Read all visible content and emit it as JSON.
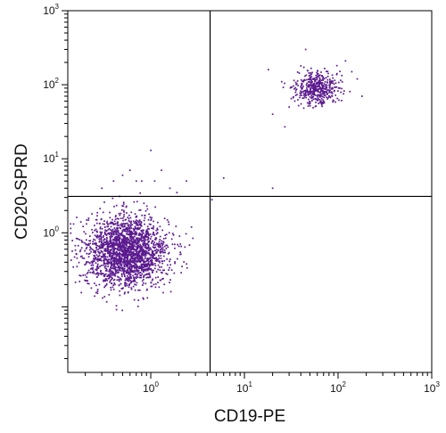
{
  "chart_data": {
    "type": "scatter",
    "title": "",
    "xlabel": "CD19-PE",
    "ylabel": "CD20-SPRD",
    "x_scale": "log",
    "y_scale": "log",
    "xlim": [
      0.13,
      1000
    ],
    "ylim": [
      0.013,
      1000
    ],
    "x_ticks": [
      {
        "value": 1,
        "base": "10",
        "exp": "0"
      },
      {
        "value": 10,
        "base": "10",
        "exp": "1"
      },
      {
        "value": 100,
        "base": "10",
        "exp": "2"
      },
      {
        "value": 1000,
        "base": "10",
        "exp": "3"
      }
    ],
    "y_ticks": [
      {
        "value": 1,
        "base": "10",
        "exp": "0"
      },
      {
        "value": 10,
        "base": "10",
        "exp": "1"
      },
      {
        "value": 100,
        "base": "10",
        "exp": "2"
      },
      {
        "value": 1000,
        "base": "10",
        "exp": "3"
      }
    ],
    "quadrant_gates": {
      "x": 4.3,
      "y": 3.1
    },
    "grid": false,
    "point_color": "#5b1a8f",
    "series": [
      {
        "name": "",
        "populations": [
          {
            "center": [
              0.55,
              0.55
            ],
            "spread": [
              0.22,
              0.24
            ],
            "count": 2200
          },
          {
            "center": [
              60,
              90
            ],
            "spread": [
              0.11,
              0.11
            ],
            "count": 480
          }
        ],
        "scattered_points": [
          [
            0.13,
            8
          ],
          [
            0.3,
            4
          ],
          [
            0.4,
            5
          ],
          [
            0.5,
            6
          ],
          [
            0.6,
            7
          ],
          [
            0.7,
            5
          ],
          [
            0.8,
            5
          ],
          [
            1.0,
            13
          ],
          [
            1.1,
            5
          ],
          [
            1.3,
            7
          ],
          [
            1.6,
            4
          ],
          [
            1.9,
            3.5
          ],
          [
            2.4,
            5
          ],
          [
            6,
            5.5
          ],
          [
            4.5,
            2.8
          ],
          [
            20,
            4
          ],
          [
            27,
            27
          ],
          [
            20,
            40
          ],
          [
            18,
            160
          ],
          [
            25,
            110
          ],
          [
            30,
            50
          ],
          [
            40,
            180
          ],
          [
            45,
            300
          ],
          [
            160,
            120
          ],
          [
            180,
            70
          ],
          [
            120,
            210
          ],
          [
            140,
            150
          ]
        ]
      }
    ]
  }
}
